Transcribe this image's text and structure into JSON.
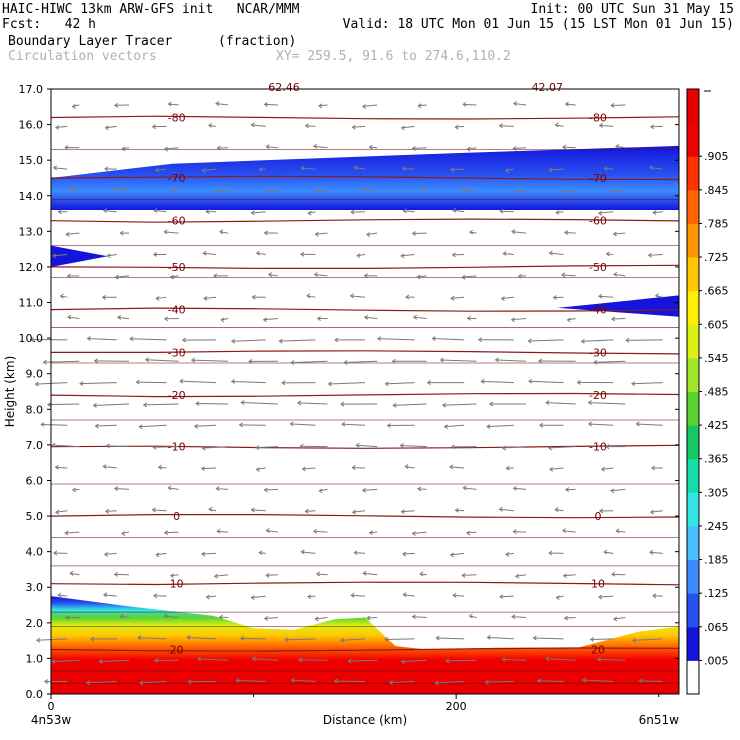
{
  "header": {
    "line1_left": "HAIC-HIWC 13km ARW-GFS init   NCAR/MMM",
    "line1_right": "Init: 00 UTC Sun 31 May 15",
    "line2_left": "Fcst:   42 h",
    "line2_right": "Valid: 18 UTC Mon 01 Jun 15 (15 LST Mon 01 Jun 15)",
    "line3_field": "Boundary Layer Tracer",
    "line3_units": "(fraction)",
    "line4_field": "Circulation vectors",
    "line4_xy": "XY= 259.5, 91.6 to 274.6,110.2"
  },
  "chart_data": {
    "type": "heatmap",
    "title": "Boundary Layer Tracer",
    "units": "(fraction)",
    "xlabel": "Distance (km)",
    "ylabel": "Height (km)",
    "xlim": [
      0,
      310
    ],
    "ylim": [
      0,
      17
    ],
    "x_ticks": [
      0,
      200
    ],
    "x_tick_labels": [
      "0",
      "200"
    ],
    "x_end_labels": [
      "4n53w",
      "6n51w"
    ],
    "y_ticks": [
      0,
      1,
      2,
      3,
      4,
      5,
      6,
      7,
      8,
      9,
      10,
      11,
      12,
      13,
      14,
      15,
      16,
      17
    ],
    "y_tick_labels": [
      "0.0",
      "1.0",
      "2.0",
      "3.0",
      "4.0",
      "5.0",
      "6.0",
      "7.0",
      "8.0",
      "9.0",
      "10.0",
      "11.0",
      "12.0",
      "13.0",
      "14.0",
      "15.0",
      "16.0",
      "17.0"
    ],
    "colorbar": {
      "labels": [
        ".005",
        ".065",
        ".125",
        ".185",
        ".245",
        ".305",
        ".365",
        ".425",
        ".485",
        ".545",
        ".605",
        ".665",
        ".725",
        ".785",
        ".845",
        ".905"
      ],
      "colors": [
        "#ffffff",
        "#1414dc",
        "#2850f0",
        "#3c8cff",
        "#46beff",
        "#32e6e6",
        "#14dcaa",
        "#14c864",
        "#5ad232",
        "#a0e628",
        "#dcf014",
        "#fff000",
        "#ffc800",
        "#ff9600",
        "#ff6400",
        "#ff3200",
        "#f00000",
        "#e60000"
      ]
    },
    "temperature_contours": [
      {
        "label": "20",
        "height_km": 1.25
      },
      {
        "label": "10",
        "height_km": 3.1
      },
      {
        "label": "0",
        "height_km": 5.0
      },
      {
        "label": "-10",
        "height_km": 6.95
      },
      {
        "label": "-20",
        "height_km": 8.4
      },
      {
        "label": "-30",
        "height_km": 9.6
      },
      {
        "label": "-40",
        "height_km": 10.8
      },
      {
        "label": "-50",
        "height_km": 12.0
      },
      {
        "label": "-60",
        "height_km": 13.3
      },
      {
        "label": "-70",
        "height_km": 14.5
      },
      {
        "label": "-80",
        "height_km": 16.2
      }
    ],
    "tracer_regions": [
      {
        "name": "boundary-layer",
        "top_km": [
          [
            0,
            2.75
          ],
          [
            40,
            2.45
          ],
          [
            80,
            2.2
          ],
          [
            100,
            1.85
          ],
          [
            120,
            1.8
          ],
          [
            140,
            2.1
          ],
          [
            155,
            2.15
          ],
          [
            170,
            1.35
          ],
          [
            185,
            1.25
          ],
          [
            220,
            1.3
          ],
          [
            260,
            1.3
          ],
          [
            290,
            1.75
          ],
          [
            310,
            1.9
          ]
        ],
        "value": 0.9
      },
      {
        "name": "upper-layer",
        "bottom_km": 13.6,
        "top_km": [
          [
            0,
            14.5
          ],
          [
            60,
            14.9
          ],
          [
            200,
            15.2
          ],
          [
            310,
            15.4
          ]
        ],
        "value": 0.06
      },
      {
        "name": "left-tongue",
        "x_km": [
          0,
          28
        ],
        "y_km": [
          12.0,
          12.6
        ],
        "value": 0.06
      },
      {
        "name": "right-tongue",
        "x_km": [
          250,
          310
        ],
        "y_km": [
          10.6,
          11.2
        ],
        "value": 0.06
      }
    ],
    "vectors": "Circulation vectors",
    "partial_top_labels": [
      "62.46",
      "42.07"
    ]
  }
}
